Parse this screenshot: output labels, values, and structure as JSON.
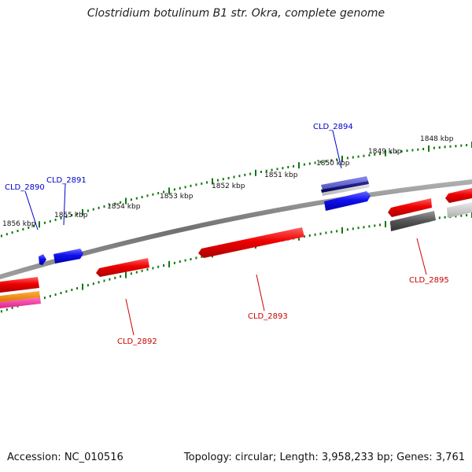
{
  "title": "Clostridium botulinum B1 str. Okra, complete genome",
  "footer": {
    "accession": "Accession: NC_010516",
    "summary": "Topology: circular; Length: 3,958,233 bp; Genes: 3,761"
  },
  "scale_labels": [
    "1848 kbp",
    "1849 kbp",
    "1850 kbp",
    "1851 kbp",
    "1852 kbp",
    "1853 kbp",
    "1854 kbp",
    "1855 kbp",
    "1856 kbp"
  ],
  "gene_labels": {
    "plus_strand": [
      "CLD_2890",
      "CLD_2891",
      "CLD_2894"
    ],
    "minus_strand": [
      "CLD_2892",
      "CLD_2893",
      "CLD_2895"
    ]
  },
  "colors": {
    "plus_strand_label": "#0000cc",
    "minus_strand_label": "#cc0000",
    "forward_gene": "#1a1aff",
    "reverse_gene": "#ff1a1a",
    "tick": "#117711",
    "backbone": "#808080"
  }
}
